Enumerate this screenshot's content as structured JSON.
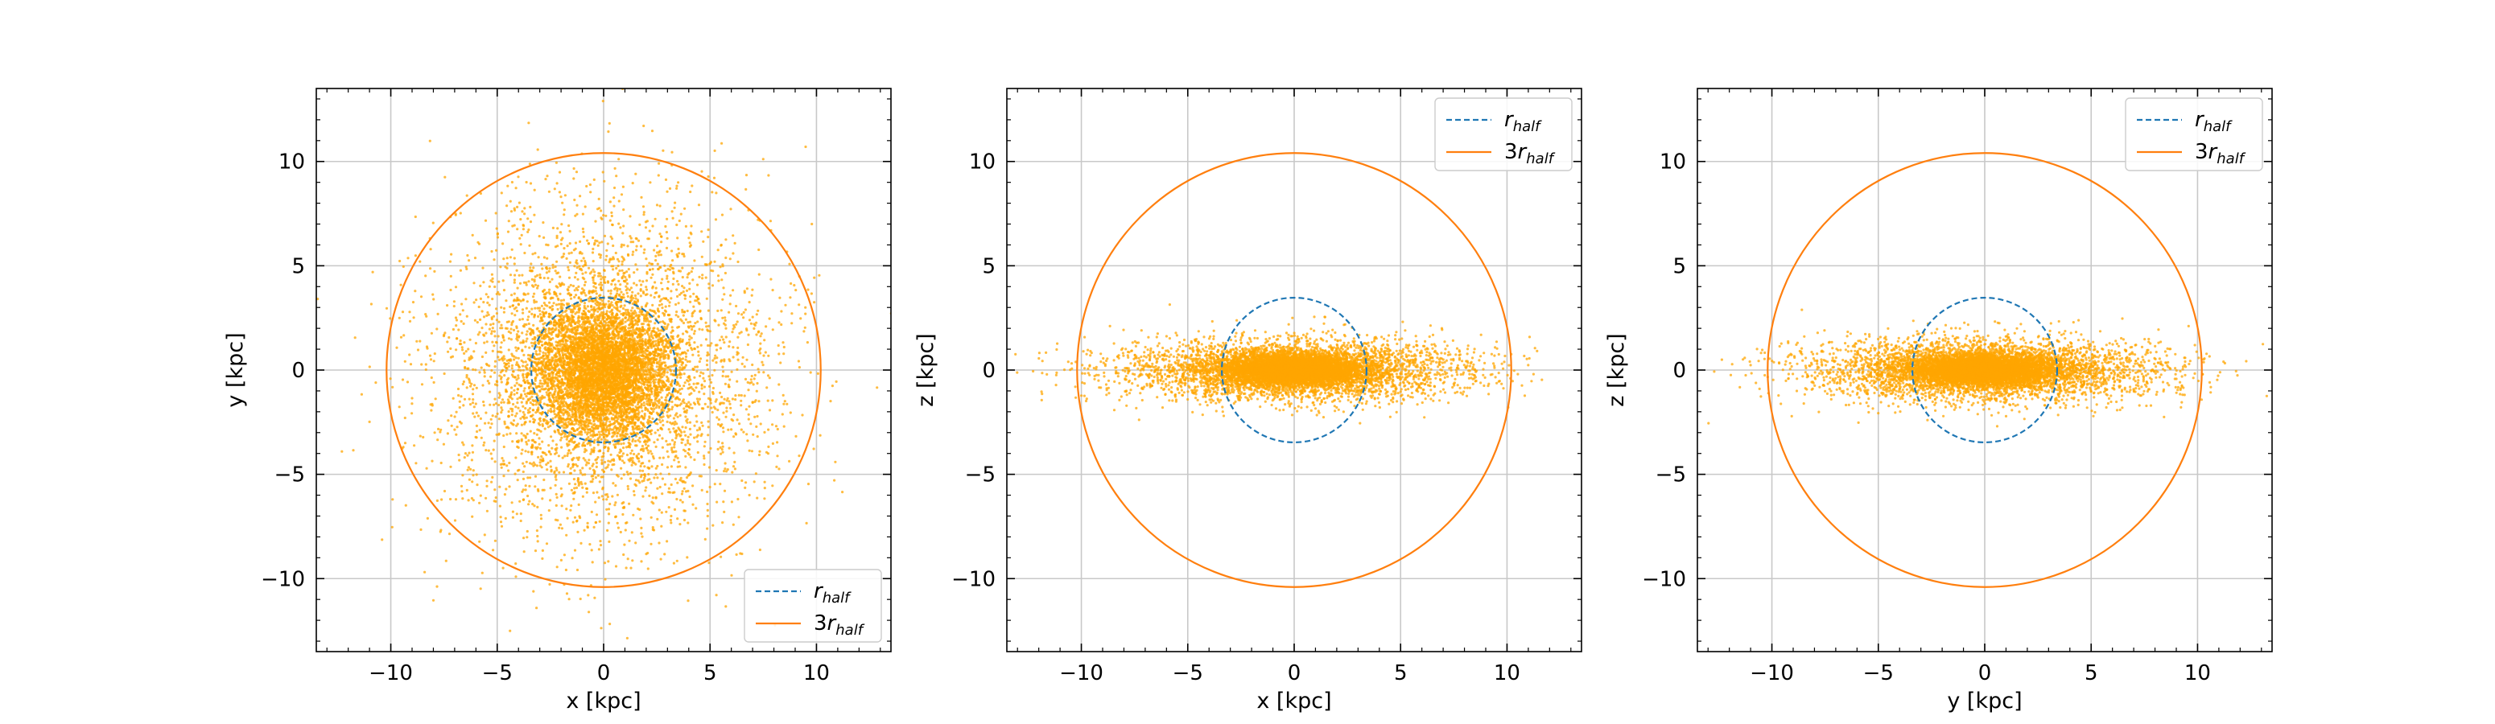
{
  "figure": {
    "panels": 3
  },
  "colors": {
    "points": "#ffa500",
    "r_half": "#1f77b4",
    "three_r_half": "#ff7f0e",
    "grid": "#c8c8c8"
  },
  "legend_labels": {
    "r_half": {
      "base": "r",
      "sub": "half"
    },
    "three_r_half": {
      "prefix": "3",
      "base": "r",
      "sub": "half"
    }
  },
  "chart_data": [
    {
      "type": "scatter",
      "title": "",
      "xlabel": "x [kpc]",
      "ylabel": "y [kpc]",
      "xlim": [
        -13.5,
        13.5
      ],
      "ylim": [
        -13.5,
        13.5
      ],
      "xticks": [
        -10,
        -5,
        0,
        5,
        10
      ],
      "yticks": [
        -10,
        -5,
        0,
        5,
        10
      ],
      "xtick_labels": [
        "−10",
        "−5",
        "0",
        "5",
        "10"
      ],
      "ytick_labels": [
        "−10",
        "−5",
        "0",
        "5",
        "10"
      ],
      "grid": true,
      "legend_placement": "lower-right",
      "projection": "face-on",
      "circles": [
        {
          "name": "r_half",
          "radius": 3.4,
          "style": "dashed"
        },
        {
          "name": "3r_half",
          "radius": 10.2,
          "style": "solid"
        }
      ],
      "point_count": 9000,
      "vertical_scale": 1.0
    },
    {
      "type": "scatter",
      "title": "",
      "xlabel": "x [kpc]",
      "ylabel": "z [kpc]",
      "xlim": [
        -13.5,
        13.5
      ],
      "ylim": [
        -13.5,
        13.5
      ],
      "xticks": [
        -10,
        -5,
        0,
        5,
        10
      ],
      "yticks": [
        -10,
        -5,
        0,
        5,
        10
      ],
      "xtick_labels": [
        "−10",
        "−5",
        "0",
        "5",
        "10"
      ],
      "ytick_labels": [
        "−10",
        "−5",
        "0",
        "5",
        "10"
      ],
      "grid": true,
      "legend_placement": "top-right",
      "projection": "edge-on",
      "circles": [
        {
          "name": "r_half",
          "radius": 3.4,
          "style": "dashed"
        },
        {
          "name": "3r_half",
          "radius": 10.2,
          "style": "solid"
        }
      ],
      "point_count": 9000,
      "vertical_scale": 0.22
    },
    {
      "type": "scatter",
      "title": "",
      "xlabel": "y [kpc]",
      "ylabel": "z [kpc]",
      "xlim": [
        -13.5,
        13.5
      ],
      "ylim": [
        -13.5,
        13.5
      ],
      "xticks": [
        -10,
        -5,
        0,
        5,
        10
      ],
      "yticks": [
        -10,
        -5,
        0,
        5,
        10
      ],
      "xtick_labels": [
        "−10",
        "−5",
        "0",
        "5",
        "10"
      ],
      "ytick_labels": [
        "−10",
        "−5",
        "0",
        "5",
        "10"
      ],
      "grid": true,
      "legend_placement": "top-right",
      "projection": "edge-on",
      "circles": [
        {
          "name": "r_half",
          "radius": 3.4,
          "style": "dashed"
        },
        {
          "name": "3r_half",
          "radius": 10.2,
          "style": "solid"
        }
      ],
      "point_count": 9000,
      "vertical_scale": 0.22
    }
  ]
}
